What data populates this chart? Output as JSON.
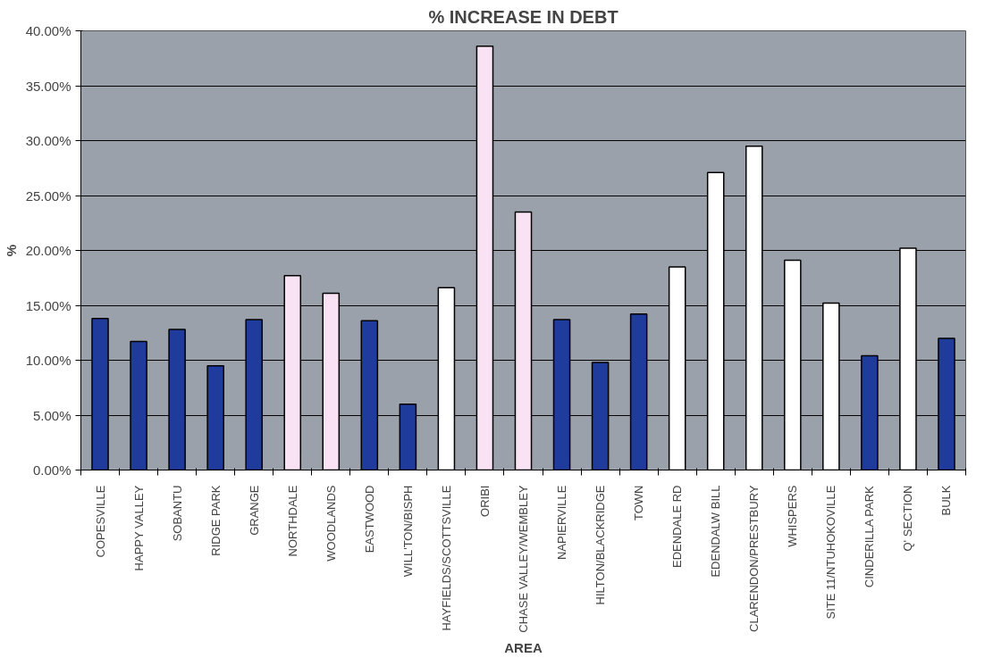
{
  "chart_data": {
    "type": "bar",
    "title": "% INCREASE IN DEBT",
    "xlabel": "AREA",
    "ylabel": "%",
    "categories": [
      "COPESVILLE",
      "HAPPY VALLEY",
      "SOBANTU",
      "RIDGE PARK",
      "GRANGE",
      "NORTHDALE",
      "WOODLANDS",
      "EASTWOOD",
      "WILL'TON/BISPH",
      "HAYFIELDS/SCOTTSVILLE",
      "ORIBI",
      "CHASE VALLEY/WEMBLEY",
      "NAPIERVILLE",
      "HILTON/BLACKRIDGE",
      "TOWN",
      "EDENDALE RD",
      "EDENDALW BILL",
      "CLARENDON/PRESTBURY",
      "WHISPERS",
      "SITE 11/NTUHOKOVILLE",
      "CINDERILLA PARK",
      "Q' SECTION",
      "BULK"
    ],
    "values": [
      13.8,
      11.7,
      12.8,
      9.5,
      13.7,
      17.7,
      16.1,
      13.6,
      6.0,
      16.6,
      38.6,
      23.5,
      13.7,
      9.8,
      14.2,
      18.5,
      27.1,
      29.5,
      19.1,
      15.2,
      10.4,
      20.2,
      12.0
    ],
    "colors": [
      "#1f3c9c",
      "#1f3c9c",
      "#1f3c9c",
      "#1f3c9c",
      "#1f3c9c",
      "#f8e2f4",
      "#f8e2f4",
      "#1f3c9c",
      "#1f3c9c",
      "#ffffff",
      "#f8e2f4",
      "#f8e2f4",
      "#1f3c9c",
      "#1f3c9c",
      "#1f3c9c",
      "#ffffff",
      "#ffffff",
      "#ffffff",
      "#ffffff",
      "#ffffff",
      "#1f3c9c",
      "#ffffff",
      "#1f3c9c"
    ],
    "ylim": [
      0,
      40
    ],
    "yticks": [
      {
        "value": 0,
        "label": "0.00%"
      },
      {
        "value": 5,
        "label": "5.00%"
      },
      {
        "value": 10,
        "label": "10.00%"
      },
      {
        "value": 15,
        "label": "15.00%"
      },
      {
        "value": 20,
        "label": "20.00%"
      },
      {
        "value": 25,
        "label": "25.00%"
      },
      {
        "value": 30,
        "label": "30.00%"
      },
      {
        "value": 35,
        "label": "35.00%"
      },
      {
        "value": 40,
        "label": "40.00%"
      }
    ],
    "grid": "y"
  }
}
